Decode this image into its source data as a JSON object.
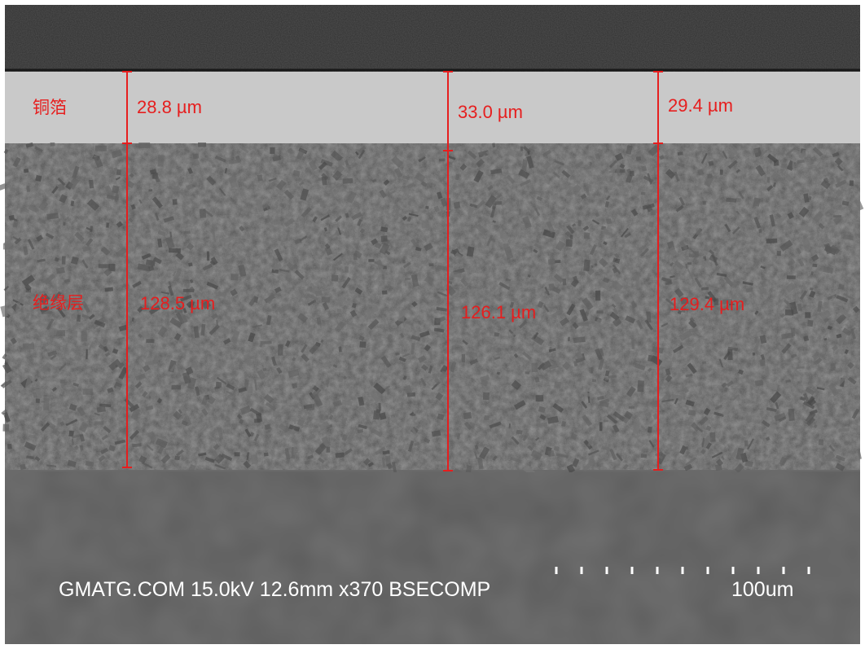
{
  "image": {
    "layers": [
      {
        "id": "copper",
        "label": "铜箔"
      },
      {
        "id": "insulation",
        "label": "绝缘层"
      }
    ],
    "measurements": {
      "copper": [
        "28.8 µm",
        "33.0 µm",
        "29.4 µm"
      ],
      "insulation": [
        "128.5 µm",
        "126.1 µm",
        "129.4 µm"
      ]
    },
    "info_bar": "GMATG.COM 15.0kV 12.6mm x370 BSECOMP",
    "scale_bar_label": "100um",
    "colors": {
      "annotation": "#e61e1e",
      "copper_layer": "#c9c9c9",
      "insulation_layer": "#4f4f4f",
      "substrate": "#5c5c5c",
      "top_dark": "#2f2f2f",
      "info_text": "#ffffff"
    }
  }
}
